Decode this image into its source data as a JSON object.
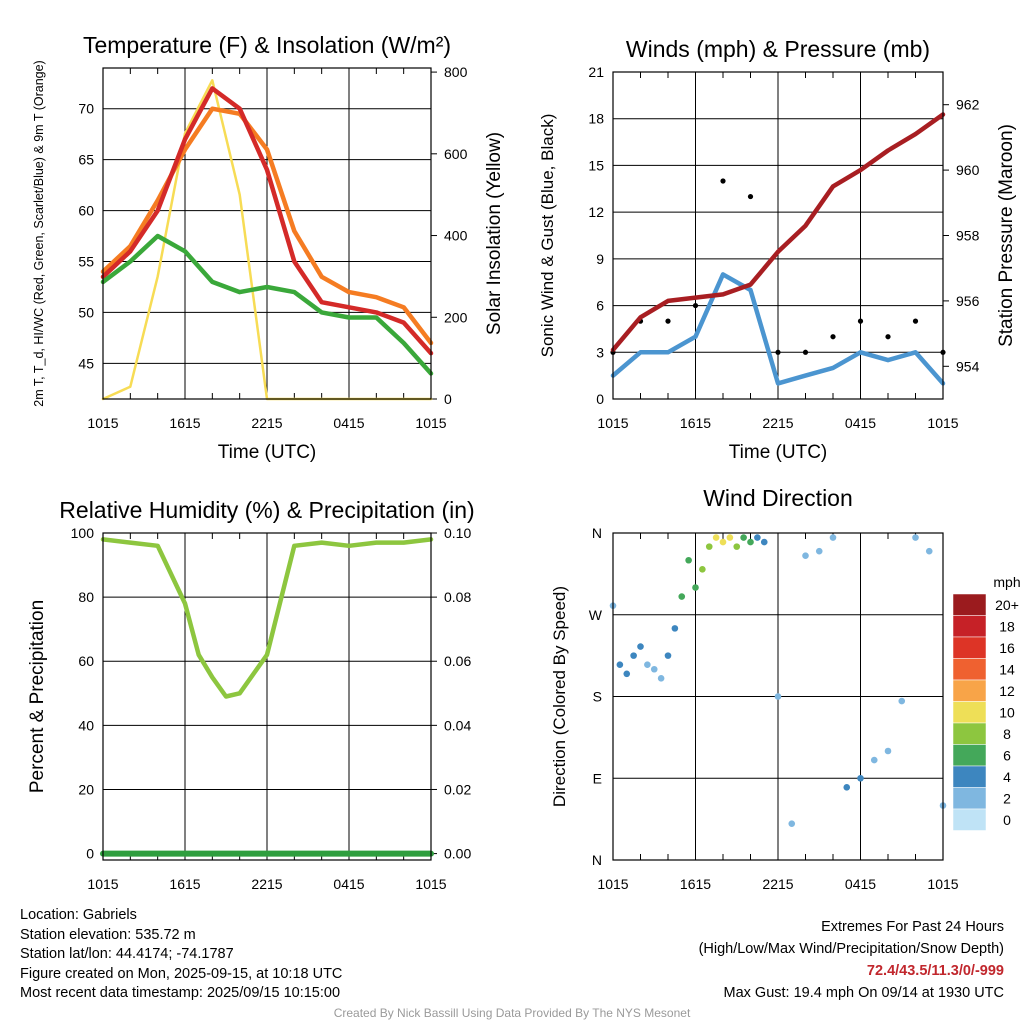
{
  "colors": {
    "temp": "#d42a28",
    "dewpoint": "#3aa83a",
    "temp9m": "#f57c22",
    "solar": "#f7dc55",
    "wind": "#4b95d0",
    "gust": "#000000",
    "pressure": "#a81e22",
    "rh": "#8dc63f",
    "precip": "#2f9e3e"
  },
  "chart_data": [
    {
      "type": "line",
      "title": "Temperature (F) & Insolation (W/m²)",
      "xlabel": "Time (UTC)",
      "ylabel": "2m T, T_d, HI/WC (Red, Green, Scarlet/Blue) & 9m T (Orange)",
      "y2label": "Solar Insolation (Yellow)",
      "x_ticks": [
        "1015",
        "1615",
        "2215",
        "0415",
        "1015"
      ],
      "x": [
        "1015",
        "1215",
        "1415",
        "1615",
        "1815",
        "2015",
        "2215",
        "0015",
        "0215",
        "0415",
        "0615",
        "0815",
        "1015"
      ],
      "ylim": [
        41.5,
        74
      ],
      "y_ticks": [
        45,
        50,
        55,
        60,
        65,
        70
      ],
      "y2lim": [
        0,
        810
      ],
      "y2_ticks": [
        0,
        200,
        400,
        600,
        800
      ],
      "grid": true,
      "series": [
        {
          "key": "temp9m",
          "axis": "left",
          "values": [
            54,
            56.5,
            61,
            66,
            70,
            69.5,
            66,
            58,
            53.5,
            52,
            51.5,
            50.5,
            47
          ]
        },
        {
          "key": "temp",
          "axis": "left",
          "values": [
            53.5,
            56,
            60,
            67,
            72,
            70,
            64,
            55,
            51,
            50.5,
            50,
            49,
            46
          ]
        },
        {
          "key": "dewpoint",
          "axis": "left",
          "values": [
            53,
            55,
            57.5,
            56,
            53,
            52,
            52.5,
            52,
            50,
            49.5,
            49.5,
            47,
            44
          ]
        },
        {
          "key": "solar",
          "axis": "right",
          "values": [
            0,
            30,
            300,
            650,
            780,
            500,
            0,
            0,
            0,
            0,
            0,
            0,
            0
          ]
        }
      ]
    },
    {
      "type": "line",
      "title": "Winds (mph) & Pressure (mb)",
      "xlabel": "Time (UTC)",
      "ylabel": "Sonic Wind & Gust (Blue, Black)",
      "y2label": "Station Pressure (Maroon)",
      "x_ticks": [
        "1015",
        "1615",
        "2215",
        "0415",
        "1015"
      ],
      "x": [
        "1015",
        "1215",
        "1415",
        "1615",
        "1815",
        "2015",
        "2215",
        "0015",
        "0215",
        "0415",
        "0615",
        "0815",
        "1015"
      ],
      "ylim": [
        0,
        21
      ],
      "y_ticks": [
        0,
        3,
        6,
        9,
        12,
        15,
        18,
        21
      ],
      "y2lim": [
        953,
        963
      ],
      "y2_ticks": [
        954,
        956,
        958,
        960,
        962
      ],
      "grid": true,
      "series": [
        {
          "key": "wind",
          "axis": "left",
          "values": [
            1.5,
            3,
            3,
            4,
            8,
            7,
            1,
            1.5,
            2,
            3,
            2.5,
            3,
            1
          ]
        },
        {
          "key": "gust",
          "axis": "left",
          "values": [
            3,
            5,
            5,
            6,
            14,
            13,
            3,
            3,
            4,
            5,
            4,
            5,
            3
          ]
        },
        {
          "key": "pressure",
          "axis": "right",
          "values": [
            954.5,
            955.5,
            956,
            956.1,
            956.2,
            956.5,
            957.5,
            958.3,
            959.5,
            960,
            960.6,
            961.1,
            961.7
          ]
        }
      ]
    },
    {
      "type": "line",
      "title": "Relative Humidity (%) & Precipitation (in)",
      "xlabel": "",
      "ylabel": "Percent & Precipitation",
      "x_ticks": [
        "1015",
        "1615",
        "2215",
        "0415",
        "1015"
      ],
      "x": [
        "1015",
        "1215",
        "1415",
        "1615",
        "1715",
        "1815",
        "1915",
        "2015",
        "2215",
        "0015",
        "0215",
        "0415",
        "0615",
        "0815",
        "1015"
      ],
      "ylim": [
        -2,
        100
      ],
      "y_ticks": [
        0,
        20,
        40,
        60,
        80,
        100
      ],
      "y2lim": [
        -0.002,
        0.1
      ],
      "y2_ticks": [
        "0.00",
        "0.02",
        "0.04",
        "0.06",
        "0.08",
        "0.10"
      ],
      "grid": true,
      "series": [
        {
          "key": "rh",
          "axis": "left",
          "values": [
            98,
            97,
            96,
            78,
            62,
            55,
            49,
            50,
            62,
            96,
            97,
            96,
            97,
            97,
            98
          ]
        },
        {
          "key": "precip",
          "axis": "right",
          "values": [
            0,
            0,
            0,
            0,
            0,
            0,
            0,
            0,
            0,
            0,
            0,
            0,
            0,
            0,
            0
          ]
        }
      ]
    },
    {
      "type": "scatter",
      "title": "Wind Direction",
      "ylabel": "Direction (Colored By Speed)",
      "x_ticks": [
        "1015",
        "1615",
        "2215",
        "0415",
        "1015"
      ],
      "y_ticks": [
        "N",
        "E",
        "S",
        "W",
        "N"
      ],
      "ylim": [
        0,
        360
      ],
      "legend_title": "mph",
      "legend": [
        "20+",
        "18",
        "16",
        "14",
        "12",
        "10",
        "8",
        "6",
        "4",
        "2",
        "0"
      ],
      "legend_colors": [
        "#9b1b1e",
        "#c62127",
        "#dd3426",
        "#ef6130",
        "#f8a448",
        "#eedf57",
        "#8dc63f",
        "#44a85a",
        "#3d86bf",
        "#7fb7e0",
        "#bfe3f6"
      ],
      "grid": true,
      "points": [
        {
          "x": "1015",
          "dir": 280,
          "speed": 1
        },
        {
          "x": "1045",
          "dir": 215,
          "speed": 3
        },
        {
          "x": "1115",
          "dir": 205,
          "speed": 4
        },
        {
          "x": "1145",
          "dir": 225,
          "speed": 3
        },
        {
          "x": "1215",
          "dir": 235,
          "speed": 3
        },
        {
          "x": "1245",
          "dir": 215,
          "speed": 2
        },
        {
          "x": "1315",
          "dir": 210,
          "speed": 2
        },
        {
          "x": "1345",
          "dir": 200,
          "speed": 1
        },
        {
          "x": "1415",
          "dir": 225,
          "speed": 3
        },
        {
          "x": "1445",
          "dir": 255,
          "speed": 4
        },
        {
          "x": "1515",
          "dir": 290,
          "speed": 5
        },
        {
          "x": "1545",
          "dir": 330,
          "speed": 5
        },
        {
          "x": "1615",
          "dir": 300,
          "speed": 6
        },
        {
          "x": "1645",
          "dir": 320,
          "speed": 7
        },
        {
          "x": "1715",
          "dir": 345,
          "speed": 8
        },
        {
          "x": "1745",
          "dir": 355,
          "speed": 10
        },
        {
          "x": "1815",
          "dir": 350,
          "speed": 9
        },
        {
          "x": "1845",
          "dir": 355,
          "speed": 10
        },
        {
          "x": "1915",
          "dir": 345,
          "speed": 8
        },
        {
          "x": "1945",
          "dir": 355,
          "speed": 6
        },
        {
          "x": "2015",
          "dir": 350,
          "speed": 5
        },
        {
          "x": "2045",
          "dir": 355,
          "speed": 4
        },
        {
          "x": "2115",
          "dir": 350,
          "speed": 3
        },
        {
          "x": "2215",
          "dir": 180,
          "speed": 1
        },
        {
          "x": "2315",
          "dir": 40,
          "speed": 2
        },
        {
          "x": "0015",
          "dir": 335,
          "speed": 2
        },
        {
          "x": "0115",
          "dir": 340,
          "speed": 2
        },
        {
          "x": "0215",
          "dir": 355,
          "speed": 1
        },
        {
          "x": "0315",
          "dir": 80,
          "speed": 3
        },
        {
          "x": "0415",
          "dir": 90,
          "speed": 4
        },
        {
          "x": "0515",
          "dir": 110,
          "speed": 2
        },
        {
          "x": "0615",
          "dir": 120,
          "speed": 2
        },
        {
          "x": "0715",
          "dir": 175,
          "speed": 1
        },
        {
          "x": "0815",
          "dir": 355,
          "speed": 1
        },
        {
          "x": "0915",
          "dir": 340,
          "speed": 1
        },
        {
          "x": "1015",
          "dir": 60,
          "speed": 2
        }
      ]
    }
  ],
  "info": {
    "location": "Location: Gabriels",
    "elevation": "Station elevation: 535.72 m",
    "latlon": "Station lat/lon: 44.4174; -74.1787",
    "created": "Figure created on Mon, 2025-09-15, at 10:18 UTC",
    "recent": "Most recent data timestamp: 2025/09/15 10:15:00"
  },
  "extremes": {
    "title": "Extremes For Past 24 Hours",
    "subtitle": "(High/Low/Max Wind/Precipitation/Snow Depth)",
    "values": "72.4/43.5/11.3/0/-999",
    "gust": "Max Gust: 19.4 mph On 09/14 at 1930 UTC"
  },
  "credit": "Created By Nick Bassill Using Data Provided By The NYS Mesonet"
}
